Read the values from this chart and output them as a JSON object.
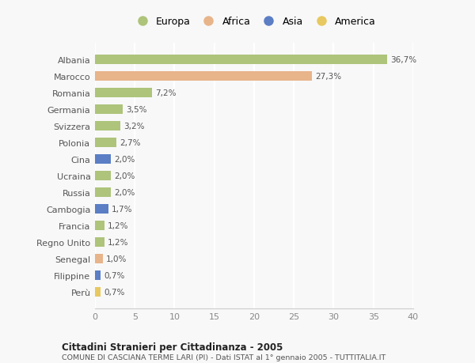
{
  "categories": [
    "Albania",
    "Marocco",
    "Romania",
    "Germania",
    "Svizzera",
    "Polonia",
    "Cina",
    "Ucraina",
    "Russia",
    "Cambogia",
    "Francia",
    "Regno Unito",
    "Senegal",
    "Filippine",
    "Perù"
  ],
  "values": [
    36.7,
    27.3,
    7.2,
    3.5,
    3.2,
    2.7,
    2.0,
    2.0,
    2.0,
    1.7,
    1.2,
    1.2,
    1.0,
    0.7,
    0.7
  ],
  "labels": [
    "36,7%",
    "27,3%",
    "7,2%",
    "3,5%",
    "3,2%",
    "2,7%",
    "2,0%",
    "2,0%",
    "2,0%",
    "1,7%",
    "1,2%",
    "1,2%",
    "1,0%",
    "0,7%",
    "0,7%"
  ],
  "continents": [
    "Europa",
    "Africa",
    "Europa",
    "Europa",
    "Europa",
    "Europa",
    "Asia",
    "Europa",
    "Europa",
    "Asia",
    "Europa",
    "Europa",
    "Africa",
    "Asia",
    "America"
  ],
  "colors": {
    "Europa": "#adc47a",
    "Africa": "#e8b48a",
    "Asia": "#5b7ec5",
    "America": "#e8c860"
  },
  "title1": "Cittadini Stranieri per Cittadinanza - 2005",
  "title2": "COMUNE DI CASCIANA TERME LARI (PI) - Dati ISTAT al 1° gennaio 2005 - TUTTITALIA.IT",
  "xlim": [
    0,
    40
  ],
  "xticks": [
    0,
    5,
    10,
    15,
    20,
    25,
    30,
    35,
    40
  ],
  "background_color": "#f8f8f8",
  "plot_bg_color": "#f8f8f8",
  "grid_color": "#ffffff",
  "bar_height": 0.55
}
